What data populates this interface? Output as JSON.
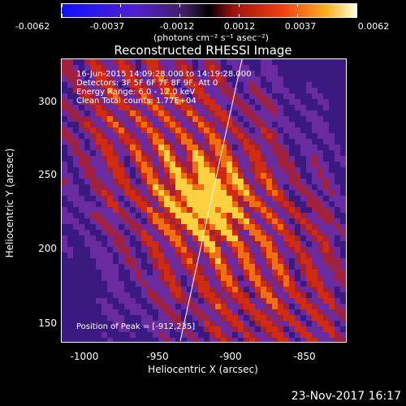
{
  "colorbar": {
    "ticks": [
      "-0.0062",
      "-0.0037",
      "-0.0012",
      "0.0012",
      "0.0037",
      "0.0062"
    ],
    "units": "(photons cm⁻² s⁻¹ asec⁻²)"
  },
  "title": "Reconstructed RHESSI Image",
  "info": {
    "line1": "16-Jun-2015 14:09:28.000 to 14:19:28.000",
    "line2": "Detectors: 3F 5F 6F 7F 8F 9F, Att 0",
    "line3": "Energy Range: 6.0 - 12.0 keV",
    "line4": "Clean     Total counts: 1.77E+04",
    "peak": "Position of Peak = [-912,235]"
  },
  "axes": {
    "xlabel": "Heliocentric X (arcsec)",
    "ylabel": "Heliocentric Y (arcsec)",
    "xticks": [
      "-1000",
      "-950",
      "-900",
      "-850"
    ],
    "yticks": [
      "300",
      "250",
      "200",
      "150"
    ],
    "xlim": [
      -1010,
      -813
    ],
    "ylim": [
      135,
      330
    ]
  },
  "image": {
    "peak_x": -912,
    "peak_y": 235,
    "colormap": [
      "#000000",
      "#3a1a80",
      "#6a2aa0",
      "#a02040",
      "#d02a10",
      "#f07010",
      "#ffd040",
      "#ffffd0"
    ]
  },
  "timestamp": "23-Nov-2017 16:17"
}
